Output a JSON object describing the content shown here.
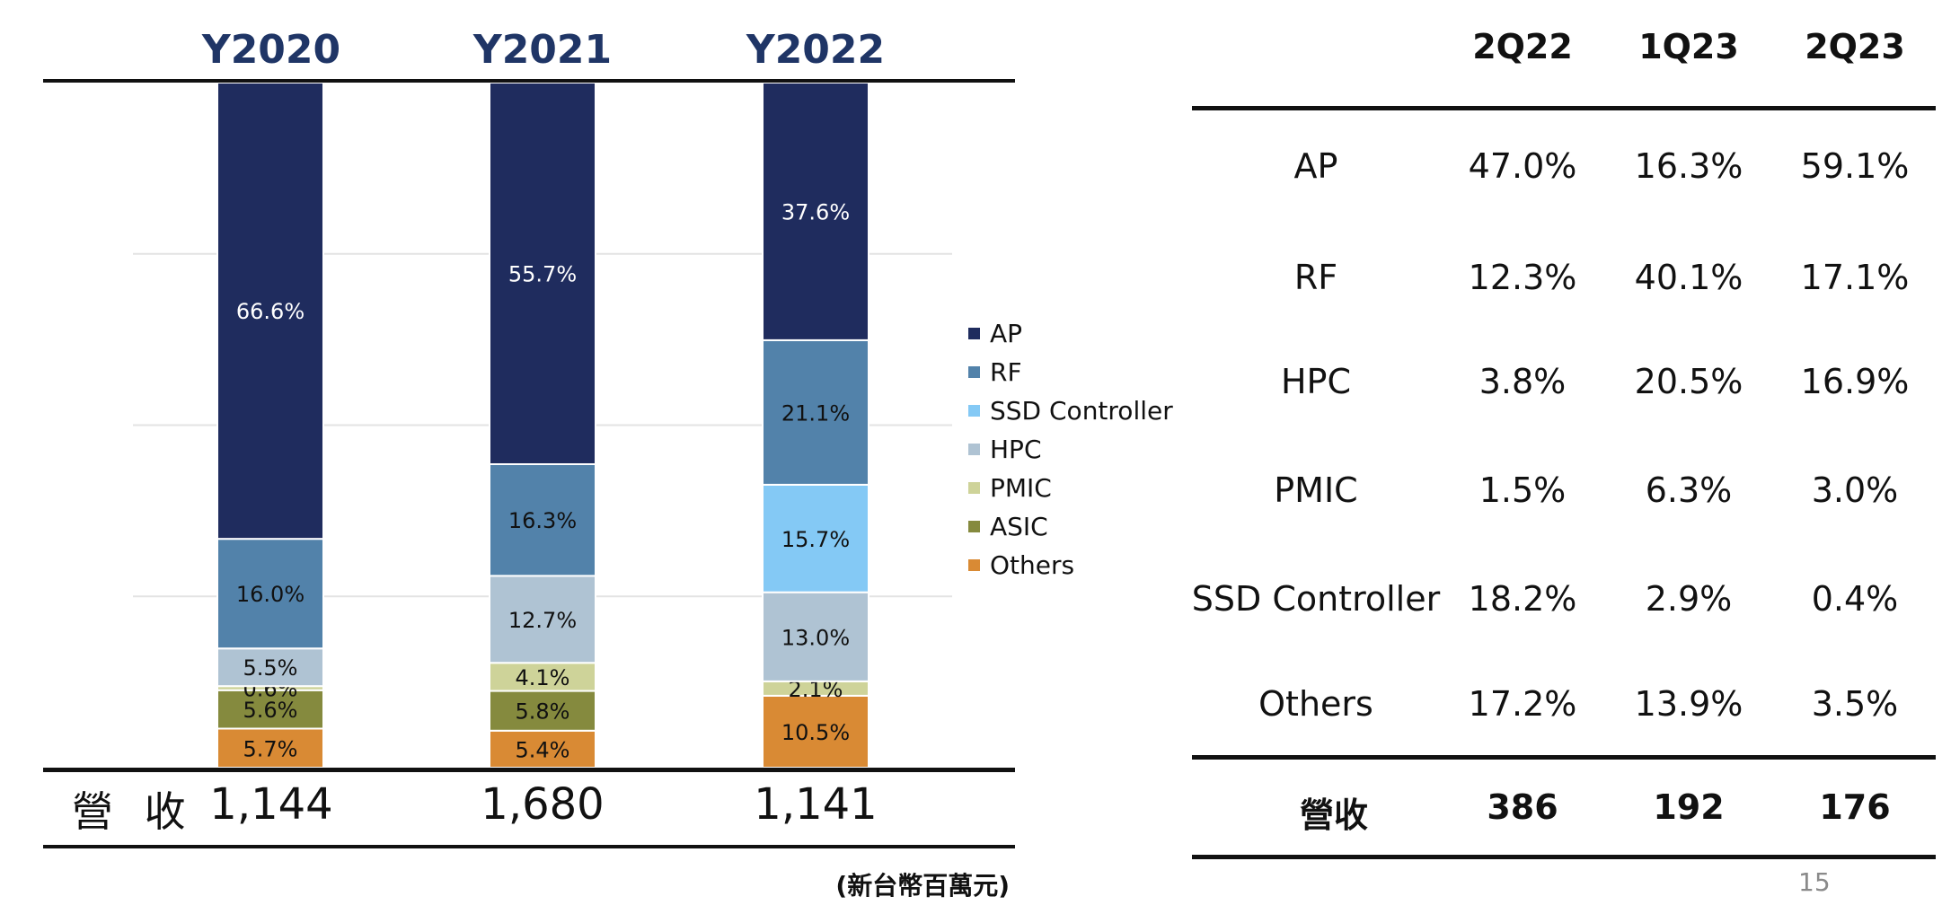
{
  "chart_data": [
    {
      "type": "bar",
      "stacked": true,
      "categories": [
        "Y2020",
        "Y2021",
        "Y2022"
      ],
      "series": [
        {
          "name": "AP",
          "color": "#1f2c5e",
          "values": [
            66.6,
            55.7,
            37.6
          ],
          "labels": [
            "66.6%",
            "55.7%",
            "37.6%"
          ]
        },
        {
          "name": "RF",
          "color": "#5282aa",
          "values": [
            16.0,
            16.3,
            21.1
          ],
          "labels": [
            "16.0%",
            "16.3%",
            "21.1%"
          ]
        },
        {
          "name": "SSD Controller",
          "color": "#84c9f5",
          "values": [
            0,
            0,
            15.7
          ],
          "labels": [
            "",
            "",
            "15.7%"
          ]
        },
        {
          "name": "HPC",
          "color": "#afc3d3",
          "values": [
            5.5,
            12.7,
            13.0
          ],
          "labels": [
            "5.5%",
            "12.7%",
            "13.0%"
          ]
        },
        {
          "name": "PMIC",
          "color": "#ced399",
          "values": [
            0.6,
            4.1,
            2.1
          ],
          "labels": [
            "0.6%",
            "4.1%",
            "2.1%"
          ]
        },
        {
          "name": "ASIC",
          "color": "#858a3e",
          "values": [
            5.6,
            5.8,
            0
          ],
          "labels": [
            "5.6%",
            "5.8%",
            ""
          ]
        },
        {
          "name": "Others",
          "color": "#d98a34",
          "values": [
            5.7,
            5.4,
            10.5
          ],
          "labels": [
            "5.7%",
            "5.4%",
            "10.5%"
          ]
        }
      ],
      "legend_position": "right",
      "grid": true,
      "revenue_label": "營 收",
      "revenue": [
        "1,144",
        "1,680",
        "1,141"
      ],
      "unit_note": "(新台幣百萬元)"
    },
    {
      "type": "table",
      "columns": [
        "2Q22",
        "1Q23",
        "2Q23"
      ],
      "rows": [
        {
          "label": "AP",
          "values": [
            "47.0%",
            "16.3%",
            "59.1%"
          ]
        },
        {
          "label": "RF",
          "values": [
            "12.3%",
            "40.1%",
            "17.1%"
          ]
        },
        {
          "label": "HPC",
          "values": [
            "3.8%",
            "20.5%",
            "16.9%"
          ]
        },
        {
          "label": "PMIC",
          "values": [
            "1.5%",
            "6.3%",
            "3.0%"
          ]
        },
        {
          "label": "SSD Controller",
          "values": [
            "18.2%",
            "2.9%",
            "0.4%"
          ]
        },
        {
          "label": "Others",
          "values": [
            "17.2%",
            "13.9%",
            "3.5%"
          ]
        }
      ],
      "total": {
        "label": "營收",
        "values": [
          "386",
          "192",
          "176"
        ]
      }
    }
  ],
  "page_number": "15"
}
